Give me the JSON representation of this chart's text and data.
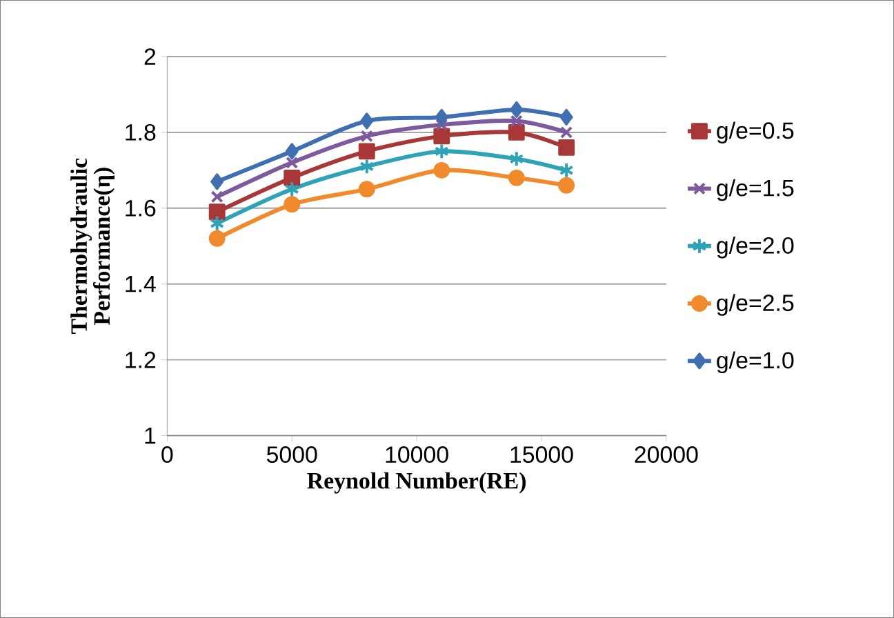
{
  "chart_data": {
    "type": "line",
    "xlabel": "Reynold Number(RE)",
    "ylabel": "Thermohydraulic Performance(η)",
    "x": [
      2000,
      5000,
      8000,
      11000,
      14000,
      16000
    ],
    "xlim": [
      0,
      20000
    ],
    "xticks": [
      0,
      5000,
      10000,
      15000,
      20000
    ],
    "ylim": [
      1,
      2
    ],
    "yticks": [
      1,
      1.2,
      1.4,
      1.6,
      1.8,
      2
    ],
    "grid": "y",
    "legend": "right",
    "series": [
      {
        "name": "g/e=0.5",
        "color": "#a83838",
        "marker": "square",
        "values": [
          1.59,
          1.68,
          1.75,
          1.79,
          1.8,
          1.76
        ]
      },
      {
        "name": "g/e=1.5",
        "color": "#7d5a9e",
        "marker": "cross",
        "values": [
          1.63,
          1.72,
          1.79,
          1.82,
          1.83,
          1.8
        ]
      },
      {
        "name": "g/e=2.0",
        "color": "#2ea3b8",
        "marker": "cross",
        "values": [
          1.56,
          1.65,
          1.71,
          1.75,
          1.73,
          1.7
        ]
      },
      {
        "name": "g/e=2.5",
        "color": "#f08a2c",
        "marker": "circle",
        "values": [
          1.52,
          1.61,
          1.65,
          1.7,
          1.68,
          1.66
        ]
      },
      {
        "name": "g/e=1.0",
        "color": "#3f6fb0",
        "marker": "diamond",
        "values": [
          1.67,
          1.75,
          1.83,
          1.84,
          1.86,
          1.84
        ]
      }
    ]
  }
}
